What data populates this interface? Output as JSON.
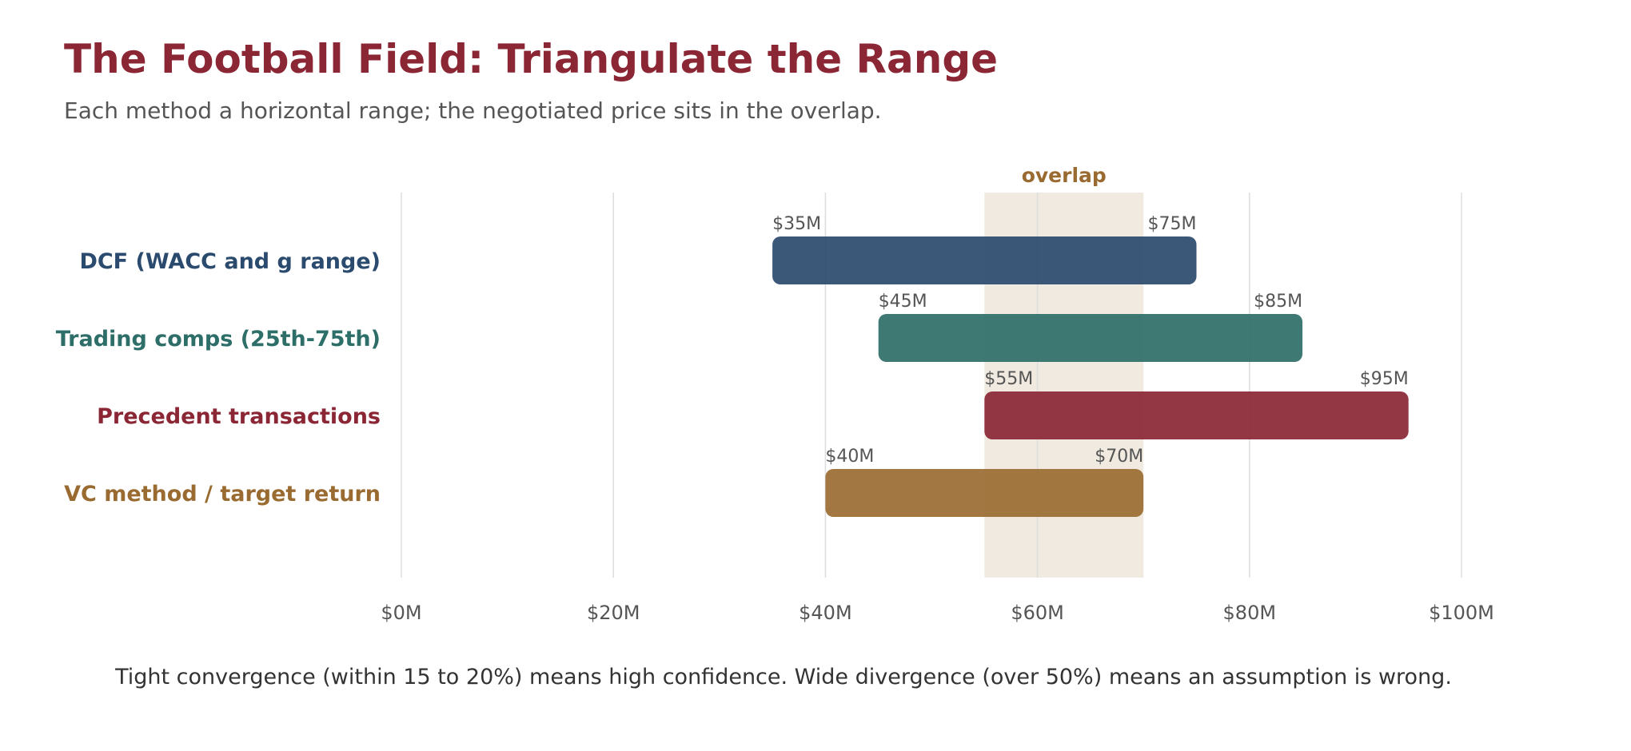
{
  "title": "The Football Field: Triangulate the Range",
  "subtitle": "Each method a horizontal range; the negotiated price sits in the overlap.",
  "footnote": "Tight convergence (within 15 to 20%) means high confidence. Wide divergence (over 50%) means an assumption is wrong.",
  "colors": {
    "title": "#8b2635",
    "overlap_band": "#e8dfcf",
    "overlap_label": "#9a6b31",
    "grid": "#dddddd"
  },
  "chart_data": {
    "type": "bar",
    "orientation": "horizontal-range",
    "xlim": [
      0,
      100
    ],
    "xticks": [
      0,
      20,
      40,
      60,
      80,
      100
    ],
    "xtick_labels": [
      "$0M",
      "$20M",
      "$40M",
      "$60M",
      "$80M",
      "$100M"
    ],
    "grid": true,
    "overlap": {
      "label": "overlap",
      "low": 55,
      "high": 70
    },
    "series": [
      {
        "name": "DCF (WACC and g range)",
        "low": 35,
        "high": 75,
        "low_label": "$35M",
        "high_label": "$75M",
        "color": "#2a4a6e"
      },
      {
        "name": "Trading comps (25th-75th)",
        "low": 45,
        "high": 85,
        "low_label": "$45M",
        "high_label": "$85M",
        "color": "#2e6e68"
      },
      {
        "name": "Precedent transactions",
        "low": 55,
        "high": 95,
        "low_label": "$55M",
        "high_label": "$95M",
        "color": "#8b2635"
      },
      {
        "name": "VC method / target return",
        "low": 40,
        "high": 70,
        "low_label": "$40M",
        "high_label": "$70M",
        "color": "#9a6b31"
      }
    ]
  }
}
